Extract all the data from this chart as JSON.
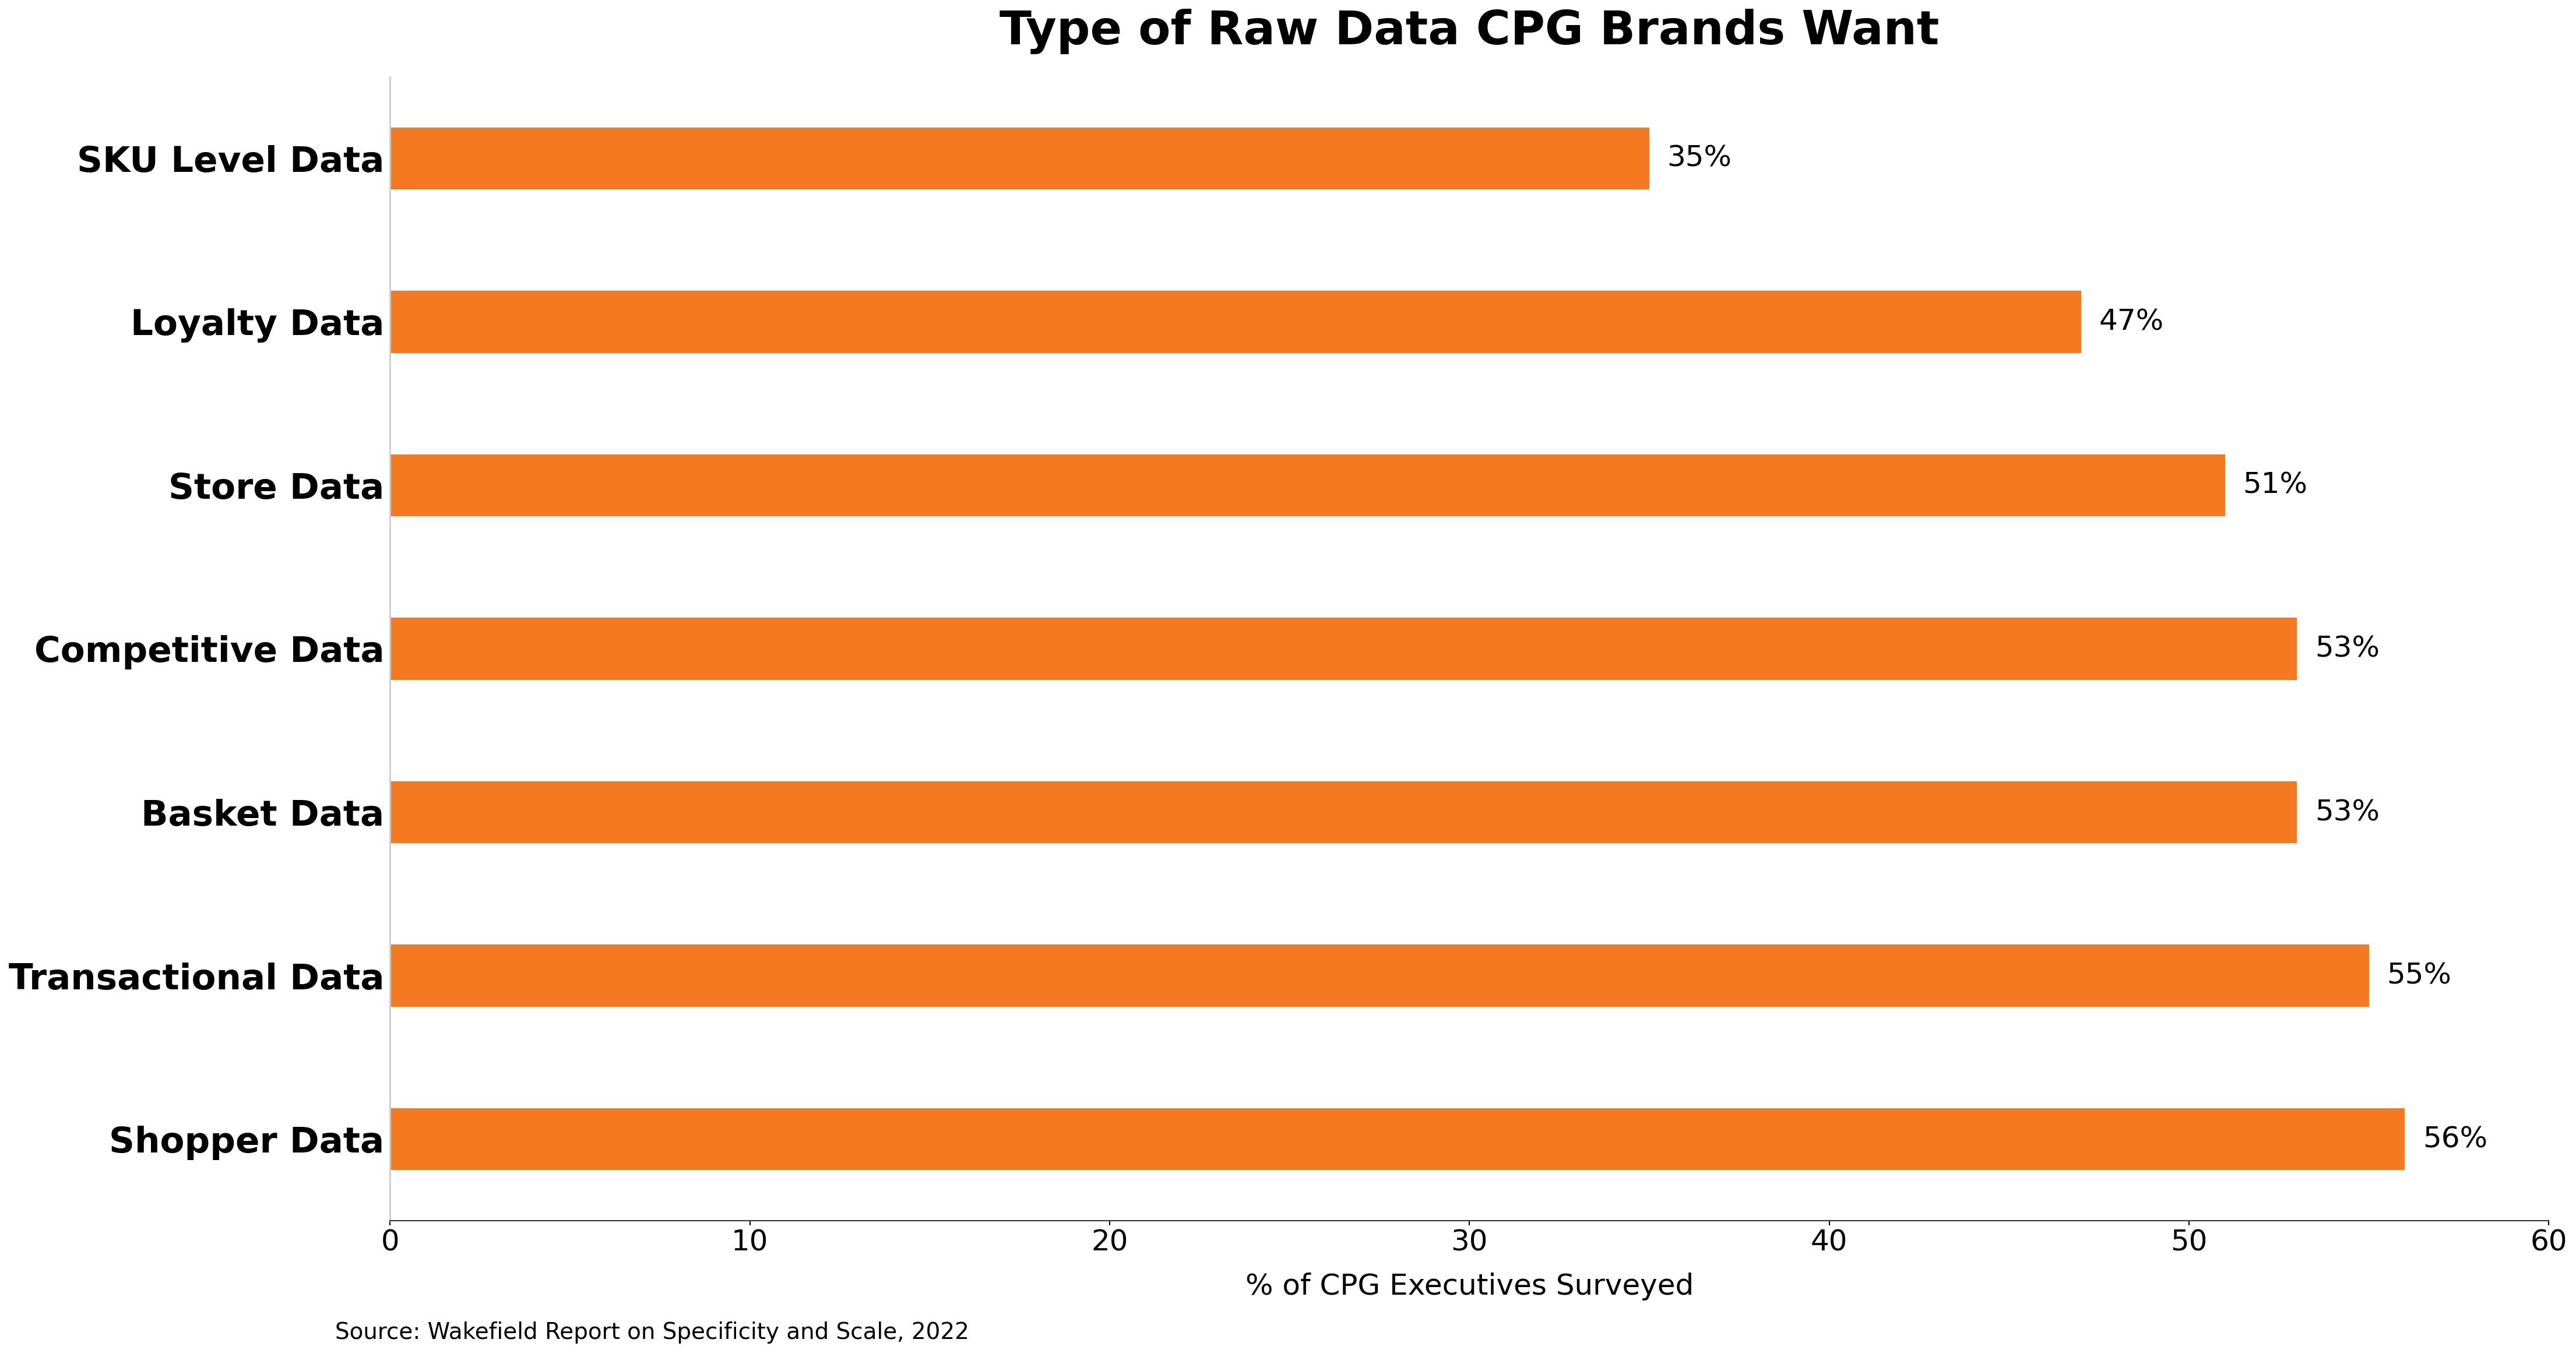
{
  "title": "Type of Raw Data CPG Brands Want",
  "categories": [
    "SKU Level Data",
    "Loyalty Data",
    "Store Data",
    "Competitive Data",
    "Basket Data",
    "Transactional Data",
    "Shopper Data"
  ],
  "values": [
    35,
    47,
    51,
    53,
    53,
    55,
    56
  ],
  "labels": [
    "35%",
    "47%",
    "51%",
    "53%",
    "53%",
    "55%",
    "56%"
  ],
  "bar_color": "#F47920",
  "xlabel": "% of CPG Executives Surveyed",
  "source": "Source: Wakefield Report on Specificity and Scale, 2022",
  "xlim": [
    0,
    60
  ],
  "xticks": [
    0,
    10,
    20,
    30,
    40,
    50,
    60
  ],
  "title_fontsize": 58,
  "ylabel_fontsize": 44,
  "xlabel_fontsize": 36,
  "tick_fontsize": 36,
  "source_fontsize": 28,
  "bar_label_fontsize": 36,
  "bar_height": 0.38,
  "background_color": "#ffffff"
}
